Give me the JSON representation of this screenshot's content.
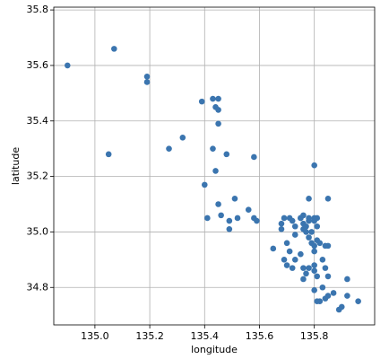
{
  "chart_data": {
    "type": "scatter",
    "x_label": "longitude",
    "y_label": "latitude",
    "color": "#3b75af",
    "grid": true,
    "xlim": [
      134.85,
      136.02
    ],
    "ylim": [
      34.665,
      35.81
    ],
    "xticks": [
      {
        "value": 135,
        "label": "135.0"
      },
      135.2,
      135.4,
      135.6,
      135.8
    ],
    "yticks": [
      34.8,
      {
        "value": 35,
        "label": "35.0"
      },
      35.2,
      35.4,
      35.6,
      35.8
    ],
    "x": [
      134.9,
      135.07,
      135.19,
      135.19,
      135.05,
      135.27,
      135.32,
      135.39,
      135.43,
      135.45,
      135.44,
      135.45,
      135.45,
      135.43,
      135.44,
      135.48,
      135.58,
      135.4,
      135.8,
      135.41,
      135.45,
      135.51,
      135.46,
      135.49,
      135.49,
      135.52,
      135.56,
      135.58,
      135.59,
      135.65,
      135.78,
      135.85,
      135.68,
      135.71,
      135.72,
      135.73,
      135.75,
      135.76,
      135.76,
      135.77,
      135.78,
      135.79,
      135.8,
      135.8,
      135.81,
      135.76,
      135.75,
      135.78,
      135.77,
      135.79,
      135.8,
      135.8,
      135.81,
      135.82,
      135.84,
      135.85,
      135.81,
      135.73,
      135.7,
      135.71,
      135.69,
      135.7,
      135.72,
      135.73,
      135.75,
      135.76,
      135.77,
      135.76,
      135.78,
      135.8,
      135.8,
      135.81,
      135.83,
      135.84,
      135.85,
      135.83,
      135.84,
      135.82,
      135.85,
      135.87,
      135.89,
      135.9,
      135.92,
      135.92,
      135.96,
      135.8,
      135.81,
      135.68,
      135.69,
      135.78
    ],
    "values": [
      35.6,
      35.66,
      35.56,
      35.54,
      35.28,
      35.3,
      35.34,
      35.47,
      35.48,
      35.48,
      35.45,
      35.44,
      35.39,
      35.3,
      35.22,
      35.28,
      35.27,
      35.17,
      35.24,
      35.05,
      35.1,
      35.12,
      35.06,
      35.04,
      35.01,
      35.05,
      35.08,
      35.05,
      35.04,
      34.94,
      35.12,
      35.12,
      35.03,
      35.05,
      35.04,
      35.02,
      35.05,
      35.03,
      35.01,
      35.0,
      34.98,
      35.0,
      35.04,
      35.05,
      35.02,
      35.06,
      35.05,
      35.04,
      35.02,
      34.96,
      34.95,
      34.93,
      34.97,
      34.96,
      34.95,
      34.95,
      35.05,
      34.99,
      34.96,
      34.93,
      34.9,
      34.88,
      34.87,
      34.9,
      34.92,
      34.87,
      34.85,
      34.83,
      34.87,
      34.88,
      34.86,
      34.84,
      34.9,
      34.87,
      34.84,
      34.8,
      34.76,
      34.75,
      34.77,
      34.78,
      34.72,
      34.73,
      34.77,
      34.83,
      34.75,
      34.79,
      34.75,
      35.01,
      35.05,
      35.05
    ]
  }
}
